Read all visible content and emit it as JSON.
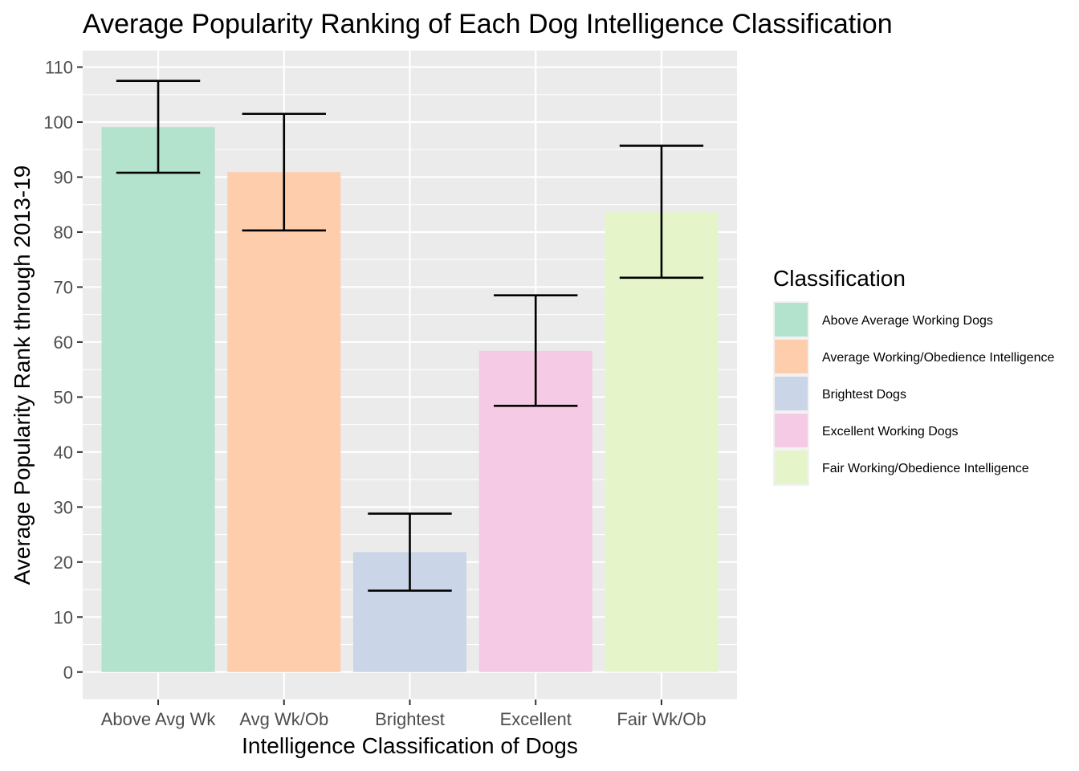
{
  "chart_data": {
    "type": "bar",
    "title": "Average Popularity Ranking of Each Dog Intelligence Classification",
    "xlabel": "Intelligence Classification of Dogs",
    "ylabel": "Average Popularity Rank through 2013-19",
    "categories": [
      "Above Avg Wk",
      "Avg Wk/Ob",
      "Brightest",
      "Excellent",
      "Fair Wk/Ob"
    ],
    "values": [
      99.1,
      90.9,
      21.8,
      58.4,
      83.6
    ],
    "error_bars": {
      "lower": [
        90.8,
        80.3,
        14.8,
        48.4,
        71.7
      ],
      "upper": [
        107.5,
        101.5,
        28.8,
        68.5,
        95.7
      ]
    },
    "ylim": [
      -5,
      113
    ],
    "yticks": [
      0,
      10,
      20,
      30,
      40,
      50,
      60,
      70,
      80,
      90,
      100,
      110
    ],
    "grid": true,
    "legend": {
      "title": "Classification",
      "position": "right",
      "entries": [
        "Above Average Working Dogs",
        "Average Working/Obedience Intelligence",
        "Brightest Dogs",
        "Excellent Working Dogs",
        "Fair Working/Obedience Intelligence"
      ]
    },
    "colors": [
      "#b3e2cd",
      "#fdcdac",
      "#cbd5e8",
      "#f4cae4",
      "#e6f5c9"
    ],
    "panel_background": "#ebebeb"
  }
}
